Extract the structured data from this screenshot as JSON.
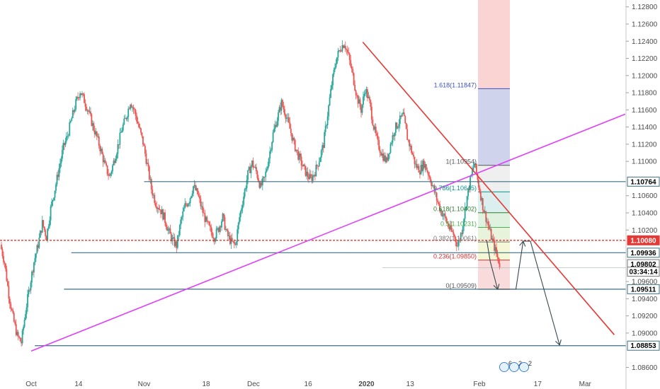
{
  "chart_data": {
    "type": "candlestick",
    "symbol_hint": "EUR/USD daily-style price chart with trendlines and fibonacci",
    "x_ticks": [
      "Oct",
      "14",
      "Nov",
      "18",
      "Dec",
      "16",
      "2020",
      "13",
      "Feb",
      "17",
      "Mar"
    ],
    "y_ticks": [
      "1.12800",
      "1.12600",
      "1.12400",
      "1.12200",
      "1.12000",
      "1.11800",
      "1.11600",
      "1.11400",
      "1.11200",
      "1.11000",
      "1.10600",
      "1.10400",
      "1.10200",
      "1.09600",
      "1.09400",
      "1.09200",
      "1.09000",
      "1.08600"
    ],
    "ylim": [
      1.0848,
      1.1288
    ],
    "price_path": [
      1.1003,
      1.0982,
      1.0945,
      1.0918,
      1.0897,
      1.0889,
      1.0925,
      1.0955,
      1.0983,
      1.1003,
      1.1028,
      1.1012,
      1.1045,
      1.1068,
      1.1092,
      1.1116,
      1.113,
      1.115,
      1.1168,
      1.1182,
      1.1171,
      1.1158,
      1.1142,
      1.1128,
      1.1112,
      1.1094,
      1.1082,
      1.1099,
      1.1118,
      1.1138,
      1.1152,
      1.117,
      1.1158,
      1.114,
      1.1122,
      1.1096,
      1.1068,
      1.1052,
      1.1045,
      1.1035,
      1.102,
      1.1008,
      1.1002,
      1.103,
      1.1048,
      1.1055,
      1.1071,
      1.1062,
      1.1045,
      1.103,
      1.102,
      1.1012,
      1.1022,
      1.1035,
      1.1015,
      1.1006,
      1.1002,
      1.1035,
      1.106,
      1.1085,
      1.1098,
      1.1088,
      1.107,
      1.108,
      1.1105,
      1.1132,
      1.115,
      1.1168,
      1.1155,
      1.1138,
      1.112,
      1.1107,
      1.1095,
      1.1085,
      1.1079,
      1.1088,
      1.1102,
      1.112,
      1.1155,
      1.119,
      1.1218,
      1.1232,
      1.1238,
      1.1222,
      1.12,
      1.1175,
      1.116,
      1.1185,
      1.1168,
      1.114,
      1.112,
      1.1108,
      1.11,
      1.112,
      1.1138,
      1.1146,
      1.1154,
      1.1128,
      1.1112,
      1.1095,
      1.109,
      1.1098,
      1.1086,
      1.1072,
      1.1056,
      1.1042,
      1.1034,
      1.1022,
      1.1015,
      1.1002,
      1.102,
      1.1052,
      1.1078,
      1.1098,
      1.1072,
      1.1048,
      1.103,
      1.1012,
      1.0996,
      1.098
    ],
    "lines": {
      "red_downtrend": {
        "from": {
          "date": "2019-12-31",
          "price": 1.1239
        },
        "to": {
          "date": "2020-03-09",
          "price": 1.0898
        }
      },
      "magenta_uptrend": {
        "from": {
          "date": "2019-10-01",
          "price": 1.0879
        },
        "to": {
          "date": "2020-03-12",
          "price": 1.1155
        }
      },
      "horizontal_levels": [
        "1.10764",
        "1.09936",
        "1.09511",
        "1.08853"
      ],
      "dotted_level": "1.10080"
    },
    "fibonacci": [
      {
        "label": "1.618(1.11847)",
        "price": 1.11847,
        "color": "#3f51b5"
      },
      {
        "label": "1(1.10954)",
        "price": 1.10954,
        "color": "#555555"
      },
      {
        "label": "0.786(1.10645)",
        "price": 1.10645,
        "color": "#009688"
      },
      {
        "label": "0.618(1.10402)",
        "price": 1.10402,
        "color": "#2e7d32"
      },
      {
        "label": "0.5(1.10231)",
        "price": 1.10231,
        "color": "#4caf50"
      },
      {
        "label": "0.382(1.10061)",
        "price": 1.10061,
        "color": "#7a7a7a"
      },
      {
        "label": "0.236(1.09850)",
        "price": 1.0985,
        "color": "#d32f2f"
      },
      {
        "label": "0(1.09509)",
        "price": 1.09509,
        "color": "#555555"
      }
    ],
    "price_badges": [
      {
        "text": "1.10764",
        "price": 1.10764,
        "bg": "#ffffff",
        "fg": "#000000",
        "border": "#3d6f80"
      },
      {
        "text": "1.10080",
        "price": 1.1008,
        "bg": "#e53935",
        "fg": "#ffffff",
        "border": "#e53935"
      },
      {
        "text": "1.09936",
        "price": 1.09936,
        "bg": "#ffffff",
        "fg": "#000000",
        "border": "#3d6f80"
      },
      {
        "text": "1.09802",
        "price": 1.09802,
        "bg": "#ffffff",
        "fg": "#000000",
        "border": "#777777"
      },
      {
        "text": "03:34:14",
        "price": 1.09715,
        "bg": "#ffffff",
        "fg": "#000000",
        "border": "#777777"
      },
      {
        "text": "1.09511",
        "price": 1.09511,
        "bg": "#ffffff",
        "fg": "#000000",
        "border": "#3d6f80"
      },
      {
        "text": "1.08853",
        "price": 1.08853,
        "bg": "#ffffff",
        "fg": "#000000",
        "border": "#3d6f80"
      }
    ],
    "event_markers": [
      "6",
      "2",
      "2"
    ],
    "colors": {
      "up": "#26a69a",
      "down": "#ef5350",
      "red_line": "#e53935",
      "magenta": "#e040fb",
      "level": "#3d6f80",
      "projection": "#37474f"
    }
  }
}
